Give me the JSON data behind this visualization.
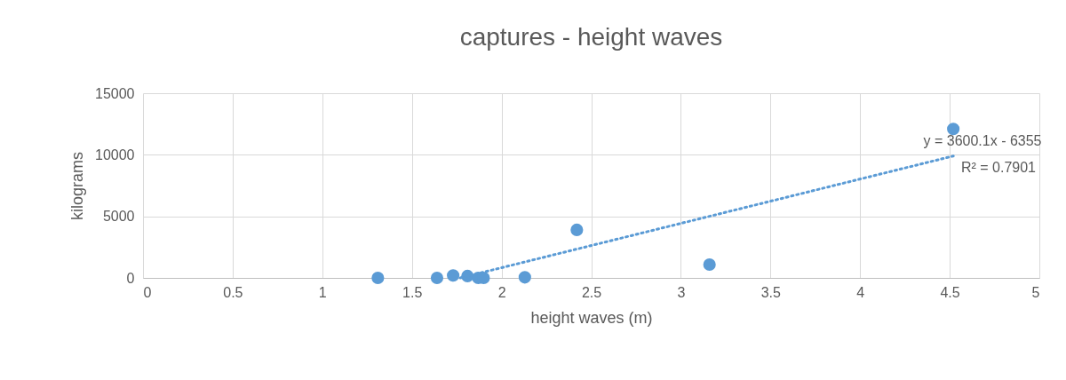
{
  "chart_data": {
    "type": "scatter",
    "title": "captures - height waves",
    "xlabel": "height waves (m)",
    "ylabel": "kilograms",
    "xlim": [
      0,
      5
    ],
    "xticks": [
      0,
      0.5,
      1,
      1.5,
      2,
      2.5,
      3,
      3.5,
      4,
      4.5,
      5
    ],
    "ylim": [
      0,
      15000
    ],
    "yticks": [
      0,
      5000,
      10000,
      15000
    ],
    "grid": true,
    "series": [
      {
        "color": "#5b9bd5",
        "marker": "circle",
        "x": [
          1.31,
          1.64,
          1.73,
          1.81,
          1.87,
          1.9,
          2.13,
          2.42,
          3.16,
          4.52
        ],
        "values": [
          0,
          0,
          200,
          150,
          0,
          0,
          50,
          3900,
          1080,
          12100
        ]
      },
      {
        "type": "line",
        "color": "#5b9bd5",
        "line_style": "dotted",
        "x": [
          1.77,
          4.52
        ],
        "values": [
          0,
          9900
        ]
      }
    ],
    "annotations": [
      "y = 3600.1x - 6355",
      "R² = 0.7901"
    ]
  }
}
